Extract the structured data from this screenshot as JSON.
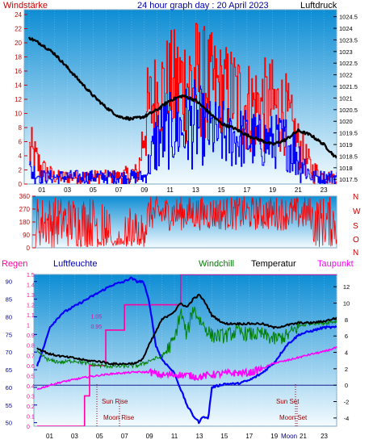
{
  "header": {
    "left_label": "Windstärke",
    "title": "24 hour graph day : 20 April 2023",
    "right_label": "Luftdruck"
  },
  "colors": {
    "bg_top": "#0d8dd4",
    "bg_bottom": "#f4fbff",
    "wind": "#ff0000",
    "gust": "#0000ff",
    "pressure": "#000000",
    "humidity": "#0000ff",
    "rain": "#ff00a0",
    "windchill": "#008000",
    "temperature": "#000000",
    "dewpoint": "#ff00ff",
    "axis_red": "#cc0000",
    "axis_blue": "#0000aa",
    "marker": "#990000"
  },
  "x_ticks": [
    "01",
    "03",
    "05",
    "07",
    "09",
    "11",
    "13",
    "15",
    "17",
    "19",
    "21",
    "23"
  ],
  "chart_data": [
    {
      "type": "line",
      "name": "wind-pressure",
      "x_ticks": [
        "01",
        "03",
        "05",
        "07",
        "09",
        "11",
        "13",
        "15",
        "17",
        "19",
        "21",
        "23"
      ],
      "left_axis": {
        "ticks": [
          "0",
          "2",
          "4",
          "6",
          "8",
          "10",
          "12",
          "14",
          "16",
          "18",
          "20",
          "22",
          "24"
        ],
        "range": [
          0,
          24
        ]
      },
      "right_axis": {
        "ticks": [
          "1017.5",
          "1018",
          "1018.5",
          "1019",
          "1019.5",
          "1020",
          "1020.5",
          "1021",
          "1021.5",
          "1022",
          "1022.5",
          "1023",
          "1023.5",
          "1024",
          "1024.5"
        ],
        "range": [
          1017.3,
          1024.8
        ]
      },
      "pressure": {
        "x": [
          0,
          1,
          2,
          3,
          4,
          5,
          6,
          7,
          8,
          9,
          10,
          11,
          12,
          13,
          14,
          15,
          16,
          17,
          18,
          19,
          20,
          21,
          22,
          23,
          24
        ],
        "y": [
          1023.6,
          1023.3,
          1022.9,
          1022.3,
          1021.7,
          1021.1,
          1020.6,
          1020.2,
          1020.1,
          1020.2,
          1020.5,
          1020.9,
          1021.1,
          1020.9,
          1020.4,
          1019.9,
          1019.7,
          1019.4,
          1019.2,
          1019.0,
          1019.2,
          1019.6,
          1019.4,
          1019.0,
          1018.4
        ]
      },
      "wind_envelope": {
        "x": [
          0,
          1,
          2,
          3,
          4,
          5,
          6,
          7,
          8,
          8.5,
          9,
          10,
          11,
          12,
          13,
          14,
          15,
          16,
          17,
          18,
          19,
          20,
          21,
          22,
          23,
          24
        ],
        "low": [
          0,
          0,
          0,
          0,
          0,
          0,
          0,
          0,
          0,
          0,
          2,
          6,
          5,
          5,
          6,
          6,
          7,
          5,
          4,
          4,
          4,
          4,
          2,
          0,
          0,
          0
        ],
        "high": [
          9,
          4,
          2,
          2,
          2,
          2,
          2,
          2,
          3,
          3,
          16,
          20,
          22,
          23,
          24,
          22,
          20,
          20,
          18,
          18,
          18,
          16,
          9,
          4,
          2,
          2
        ]
      },
      "gust_envelope": {
        "x": [
          0,
          1,
          2,
          3,
          4,
          5,
          6,
          7,
          8,
          9,
          10,
          11,
          12,
          13,
          14,
          15,
          16,
          17,
          18,
          19,
          20,
          21,
          22,
          23,
          24
        ],
        "low": [
          0,
          0,
          0,
          0,
          0,
          0,
          0,
          0,
          0,
          0,
          1,
          2,
          2,
          2,
          3,
          2,
          2,
          2,
          2,
          2,
          2,
          0,
          0,
          0,
          0
        ],
        "high": [
          4,
          2,
          2,
          2,
          2,
          2,
          2,
          2,
          2,
          2,
          12,
          13,
          14,
          15,
          12,
          12,
          11,
          11,
          10,
          10,
          10,
          8,
          2,
          2,
          2
        ]
      }
    },
    {
      "type": "line",
      "name": "wind-direction",
      "left_axis": {
        "ticks": [
          "0",
          "90",
          "180",
          "270",
          "360"
        ],
        "range": [
          0,
          360
        ]
      },
      "right_letters": [
        "N",
        "W",
        "S",
        "O",
        "N"
      ]
    },
    {
      "type": "line",
      "name": "temp-humidity",
      "legend": [
        "Regen",
        "Luftfeuchte",
        "Windchill",
        "Temperatur",
        "Taupunkt"
      ],
      "rain_axis": {
        "ticks": [
          "0",
          "0.1",
          "0.2",
          "0.3",
          "0.4",
          "0.5",
          "0.6",
          "0.7",
          "0.8",
          "0.9",
          "1",
          "1.1",
          "1.2",
          "1.3",
          "1.4",
          "1.5"
        ],
        "range": [
          0,
          1.5
        ]
      },
      "humidity_axis": {
        "ticks": [
          "50",
          "55",
          "60",
          "65",
          "70",
          "75",
          "80",
          "85",
          "90"
        ],
        "range": [
          49,
          92
        ]
      },
      "temp_axis": {
        "ticks": [
          "-4",
          "-2",
          "0",
          "2",
          "4",
          "6",
          "8",
          "10",
          "12"
        ],
        "range": [
          -5,
          13.5
        ]
      },
      "temperature": {
        "x": [
          0,
          1,
          2,
          3,
          4,
          5,
          6,
          7,
          8,
          8.5,
          9,
          10,
          11,
          11.5,
          12,
          12.5,
          13,
          13.5,
          14,
          15,
          16,
          17,
          18,
          19,
          20,
          21,
          22,
          23,
          24
        ],
        "y": [
          4.5,
          3.8,
          3.5,
          3.3,
          3.0,
          2.9,
          2.6,
          2.6,
          2.7,
          3.3,
          5.0,
          8.0,
          9.0,
          10.0,
          9.5,
          10.5,
          11.0,
          10.0,
          8.5,
          7.5,
          7.5,
          7.5,
          7.5,
          7.0,
          7.3,
          7.6,
          7.6,
          7.8,
          8.2
        ]
      },
      "windchill": {
        "x": [
          0,
          1,
          2,
          3,
          4,
          5,
          6,
          7,
          8,
          8.5,
          9,
          10,
          11,
          11.5,
          12,
          12.5,
          13,
          13.5,
          14,
          15,
          16,
          17,
          18,
          19,
          20,
          21,
          22,
          23,
          24
        ],
        "y": [
          4.0,
          3.0,
          2.8,
          3.0,
          2.6,
          2.4,
          2.3,
          2.3,
          2.4,
          2.6,
          3.0,
          3.5,
          5.5,
          9.0,
          6.0,
          9.5,
          8.0,
          7.0,
          6.0,
          6.0,
          6.5,
          6.2,
          6.2,
          5.6,
          6.0,
          7.2,
          7.6,
          7.6,
          7.8
        ]
      },
      "dewpoint": {
        "x": [
          0,
          1,
          2,
          3,
          4,
          5,
          6,
          7,
          8,
          9,
          10,
          11,
          12,
          13,
          14,
          15,
          16,
          17,
          18,
          19,
          20,
          21,
          22,
          23,
          24
        ],
        "y": [
          -0.5,
          0.0,
          0.4,
          0.7,
          1.0,
          1.2,
          1.4,
          1.5,
          1.6,
          1.6,
          1.2,
          1.3,
          1.2,
          1.0,
          1.3,
          1.4,
          1.5,
          1.5,
          2.0,
          2.7,
          3.0,
          3.4,
          3.8,
          4.1,
          4.6
        ]
      },
      "humidity": {
        "x": [
          0,
          0.5,
          1,
          2,
          3,
          4,
          5,
          6,
          7,
          7.5,
          8,
          8.5,
          9,
          9.5,
          10,
          11,
          12,
          12.5,
          13,
          13.3,
          13.7,
          14,
          15,
          16,
          17,
          18,
          19,
          20,
          21,
          22,
          23,
          24
        ],
        "y": [
          66,
          71,
          77,
          81,
          83,
          85,
          87,
          89,
          90,
          91,
          90,
          90,
          84,
          72,
          68,
          64,
          55,
          52,
          50,
          52,
          51,
          60,
          61,
          61,
          62,
          64,
          67,
          72,
          75,
          76,
          77,
          77
        ]
      },
      "rain": {
        "x": [
          0,
          3.8,
          3.8,
          4.2,
          4.2,
          5.5,
          5.5,
          7,
          7,
          11.5,
          11.5,
          24
        ],
        "y": [
          0,
          0,
          0.3,
          0.3,
          0.6,
          0.6,
          0.95,
          0.95,
          1.2,
          1.2,
          1.5,
          1.5
        ]
      },
      "rain_labels": {
        "x": [
          4.3,
          4.3
        ],
        "y": [
          0.95,
          1.05
        ],
        "labels": [
          "0.95",
          "1.05"
        ]
      },
      "events": {
        "sun_rise": "Sun Rise",
        "moon_rise": "Moon Rise",
        "sun_set": "Sun Set",
        "moon_set": "Moon Set",
        "moon_label": "Moon"
      }
    }
  ]
}
